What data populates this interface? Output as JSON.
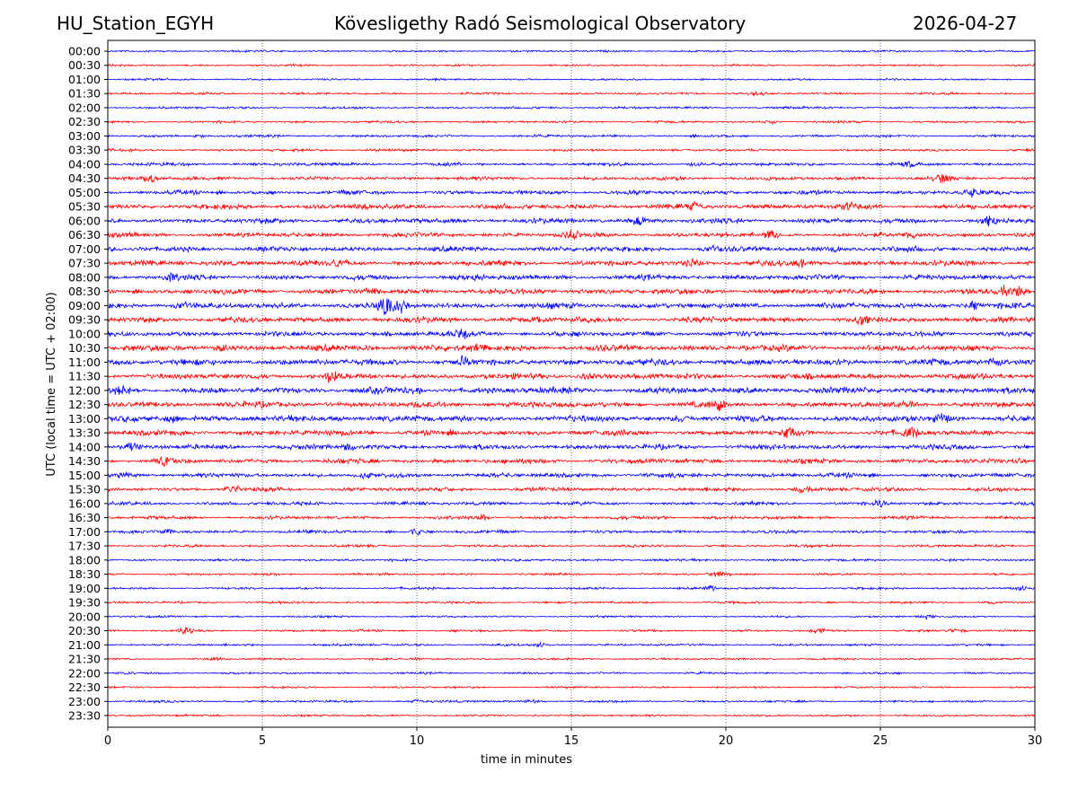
{
  "header": {
    "station": "HU_Station_EGYH",
    "observatory": "Kövesligethy Radó Seismological Observatory",
    "date": "2026-04-27"
  },
  "chart_data": {
    "type": "line",
    "title": "Kövesligethy Radó Seismological Observatory",
    "xlabel": "time in minutes",
    "ylabel": "UTC (local time = UTC + 02:00)",
    "xlim": [
      0,
      30
    ],
    "xticks": [
      "0",
      "5",
      "10",
      "15",
      "20",
      "25",
      "30"
    ],
    "grid": "vertical dotted at every 5 minutes",
    "colors": [
      "#0000ff",
      "#ff0000"
    ],
    "rows": [
      {
        "label": "00:00",
        "noise": 0.8,
        "events": []
      },
      {
        "label": "00:30",
        "noise": 0.8,
        "events": []
      },
      {
        "label": "01:00",
        "noise": 0.8,
        "events": []
      },
      {
        "label": "01:30",
        "noise": 0.9,
        "events": [
          [
            19,
            1.5
          ],
          [
            21,
            1.5
          ]
        ]
      },
      {
        "label": "02:00",
        "noise": 0.9,
        "events": []
      },
      {
        "label": "02:30",
        "noise": 0.9,
        "events": [
          [
            21.5,
            1.8
          ]
        ]
      },
      {
        "label": "03:00",
        "noise": 1.0,
        "events": [
          [
            3,
            2
          ]
        ]
      },
      {
        "label": "03:30",
        "noise": 1.0,
        "events": [
          [
            8.5,
            1.5
          ]
        ]
      },
      {
        "label": "04:00",
        "noise": 1.3,
        "events": [
          [
            19,
            2.5
          ],
          [
            26,
            2
          ]
        ]
      },
      {
        "label": "04:30",
        "noise": 1.5,
        "events": [
          [
            1.4,
            4
          ],
          [
            27,
            2.5
          ]
        ]
      },
      {
        "label": "05:00",
        "noise": 1.7,
        "events": [
          [
            28,
            3
          ]
        ]
      },
      {
        "label": "05:30",
        "noise": 2.0,
        "events": [
          [
            8.2,
            3
          ],
          [
            19,
            3
          ],
          [
            24,
            3
          ]
        ]
      },
      {
        "label": "06:00",
        "noise": 2.0,
        "events": [
          [
            17.2,
            4
          ],
          [
            28.5,
            4
          ]
        ]
      },
      {
        "label": "06:30",
        "noise": 1.8,
        "events": [
          [
            15,
            3
          ],
          [
            21.5,
            3
          ],
          [
            26,
            3.5
          ]
        ]
      },
      {
        "label": "07:00",
        "noise": 2.0,
        "events": [
          [
            19.5,
            3
          ],
          [
            23.5,
            3
          ]
        ]
      },
      {
        "label": "07:30",
        "noise": 2.2,
        "events": [
          [
            7.5,
            3
          ],
          [
            19,
            3.5
          ],
          [
            22.5,
            3.5
          ]
        ]
      },
      {
        "label": "08:00",
        "noise": 2.0,
        "events": [
          [
            2,
            2.5
          ],
          [
            12,
            2.5
          ]
        ]
      },
      {
        "label": "08:30",
        "noise": 2.2,
        "events": [
          [
            8.5,
            3
          ],
          [
            29,
            5
          ],
          [
            29.5,
            6
          ]
        ]
      },
      {
        "label": "09:00",
        "noise": 2.3,
        "events": [
          [
            9,
            7
          ],
          [
            9.5,
            5
          ],
          [
            2.4,
            3
          ],
          [
            28,
            3.5
          ]
        ]
      },
      {
        "label": "09:30",
        "noise": 2.2,
        "events": [
          [
            14,
            3
          ],
          [
            24.4,
            4
          ],
          [
            29,
            3
          ]
        ]
      },
      {
        "label": "10:00",
        "noise": 2.0,
        "events": [
          [
            11.5,
            3
          ]
        ]
      },
      {
        "label": "10:30",
        "noise": 2.4,
        "events": [
          [
            3.7,
            3.5
          ],
          [
            8.5,
            3.5
          ],
          [
            12,
            3
          ]
        ]
      },
      {
        "label": "11:00",
        "noise": 2.5,
        "events": [
          [
            11.5,
            3
          ],
          [
            28.7,
            4
          ]
        ]
      },
      {
        "label": "11:30",
        "noise": 2.3,
        "events": [
          [
            7.2,
            4.5
          ],
          [
            15.5,
            3.5
          ]
        ]
      },
      {
        "label": "12:00",
        "noise": 2.5,
        "events": [
          [
            10,
            3
          ],
          [
            0.5,
            3
          ]
        ]
      },
      {
        "label": "12:30",
        "noise": 2.3,
        "events": [
          [
            19.7,
            5
          ],
          [
            26,
            3
          ]
        ]
      },
      {
        "label": "13:00",
        "noise": 2.5,
        "events": [
          [
            2.1,
            4
          ],
          [
            7.5,
            3
          ],
          [
            18.5,
            3
          ],
          [
            27,
            3
          ]
        ]
      },
      {
        "label": "13:30",
        "noise": 2.2,
        "events": [
          [
            22,
            3.5
          ],
          [
            26,
            3
          ]
        ]
      },
      {
        "label": "14:00",
        "noise": 2.0,
        "events": [
          [
            0.8,
            3
          ],
          [
            7.8,
            3
          ]
        ]
      },
      {
        "label": "14:30",
        "noise": 1.9,
        "events": [
          [
            1.8,
            3
          ],
          [
            29.5,
            3
          ]
        ]
      },
      {
        "label": "15:00",
        "noise": 1.8,
        "events": [
          [
            0.5,
            2.5
          ],
          [
            8.3,
            2.5
          ]
        ]
      },
      {
        "label": "15:30",
        "noise": 1.6,
        "events": [
          [
            4,
            4
          ],
          [
            22.5,
            3
          ]
        ]
      },
      {
        "label": "16:00",
        "noise": 1.4,
        "events": [
          [
            25,
            2.5
          ]
        ]
      },
      {
        "label": "16:30",
        "noise": 1.3,
        "events": [
          [
            12.2,
            3
          ],
          [
            18,
            2
          ]
        ]
      },
      {
        "label": "17:00",
        "noise": 1.3,
        "events": [
          [
            10,
            3
          ],
          [
            2,
            2
          ]
        ]
      },
      {
        "label": "17:30",
        "noise": 1.0,
        "events": []
      },
      {
        "label": "18:00",
        "noise": 1.0,
        "events": []
      },
      {
        "label": "18:30",
        "noise": 0.9,
        "events": [
          [
            19.7,
            2
          ]
        ]
      },
      {
        "label": "19:00",
        "noise": 0.9,
        "events": [
          [
            19.5,
            2
          ],
          [
            29.5,
            1.8
          ]
        ]
      },
      {
        "label": "19:30",
        "noise": 0.9,
        "events": [
          [
            28.5,
            1.5
          ]
        ]
      },
      {
        "label": "20:00",
        "noise": 0.8,
        "events": [
          [
            26.5,
            1.5
          ]
        ]
      },
      {
        "label": "20:30",
        "noise": 0.9,
        "events": [
          [
            2.5,
            2.5
          ],
          [
            23,
            2
          ],
          [
            27.5,
            2
          ]
        ]
      },
      {
        "label": "21:00",
        "noise": 0.9,
        "events": [
          [
            14,
            1.8
          ]
        ]
      },
      {
        "label": "21:30",
        "noise": 0.8,
        "events": [
          [
            3.5,
            1.5
          ],
          [
            10,
            1.5
          ]
        ]
      },
      {
        "label": "22:00",
        "noise": 0.8,
        "events": [
          [
            0.5,
            1.5
          ]
        ]
      },
      {
        "label": "22:30",
        "noise": 0.8,
        "events": []
      },
      {
        "label": "23:00",
        "noise": 0.9,
        "events": [
          [
            13.8,
            2
          ],
          [
            10,
            1.5
          ]
        ]
      },
      {
        "label": "23:30",
        "noise": 0.8,
        "events": []
      }
    ]
  }
}
